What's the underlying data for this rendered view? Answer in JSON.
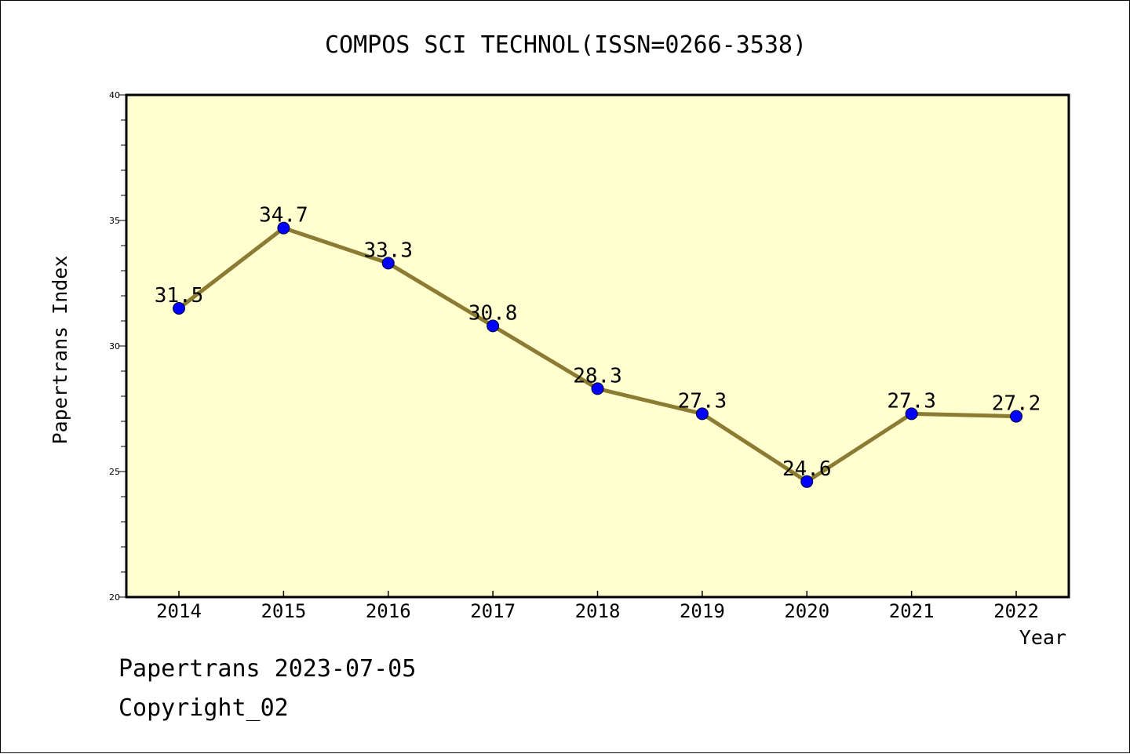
{
  "footer": {
    "line1": "Papertrans 2023-07-05",
    "line2": "Copyright_02"
  },
  "colors": {
    "plot_background": "#ffffd0",
    "line": "#8b7b33",
    "marker": "#0000ff",
    "axis": "#000000"
  },
  "chart_data": {
    "type": "line",
    "title": "COMPOS SCI TECHNOL(ISSN=0266-3538)",
    "xlabel": "Year",
    "ylabel": "Papertrans Index",
    "categories": [
      "2014",
      "2015",
      "2016",
      "2017",
      "2018",
      "2019",
      "2020",
      "2021",
      "2022"
    ],
    "series": [
      {
        "values": [
          31.5,
          34.7,
          33.3,
          30.8,
          28.3,
          27.3,
          24.6,
          27.3,
          27.2
        ],
        "labels": [
          "31.5",
          "34.7",
          "33.3",
          "30.8",
          "28.3",
          "27.3",
          "24.6",
          "27.3",
          "27.2"
        ]
      }
    ],
    "ylim": [
      20,
      40
    ],
    "yticks": [
      "20",
      "25",
      "30",
      "35",
      "40"
    ],
    "grid": false,
    "legend": "none"
  }
}
